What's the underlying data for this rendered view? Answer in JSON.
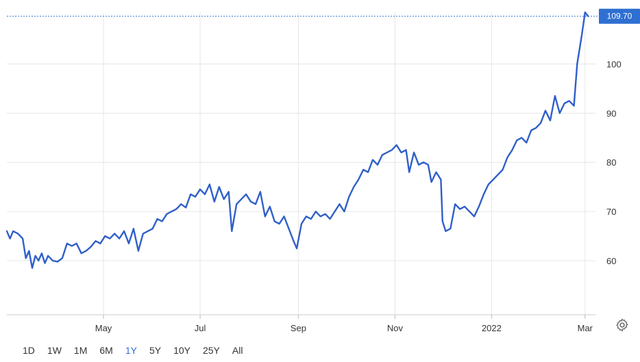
{
  "chart_data": {
    "type": "line",
    "title": "",
    "xlabel": "",
    "ylabel": "",
    "last_value": "109.70",
    "ylim": [
      49,
      110.5
    ],
    "y_ticks": [
      60,
      70,
      80,
      90,
      100
    ],
    "x_ticks": [
      {
        "label": "May",
        "date": "2021-05-01"
      },
      {
        "label": "Jul",
        "date": "2021-07-01"
      },
      {
        "label": "Sep",
        "date": "2021-09-01"
      },
      {
        "label": "Nov",
        "date": "2021-11-01"
      },
      {
        "label": "2022",
        "date": "2022-01-01"
      },
      {
        "label": "Mar",
        "date": "2022-03-01"
      }
    ],
    "xlim": [
      "2021-03-01",
      "2022-03-08"
    ],
    "colors": {
      "line": "#2f5fc8",
      "last_badge": "#2f6fd1",
      "grid": "#e6e6e6"
    },
    "series": [
      {
        "name": "",
        "points": [
          [
            "2021-03-01",
            66.0
          ],
          [
            "2021-03-03",
            64.5
          ],
          [
            "2021-03-05",
            66.0
          ],
          [
            "2021-03-08",
            65.5
          ],
          [
            "2021-03-11",
            64.5
          ],
          [
            "2021-03-13",
            60.5
          ],
          [
            "2021-03-15",
            62.0
          ],
          [
            "2021-03-17",
            58.5
          ],
          [
            "2021-03-19",
            61.0
          ],
          [
            "2021-03-21",
            60.0
          ],
          [
            "2021-03-23",
            61.5
          ],
          [
            "2021-03-25",
            59.5
          ],
          [
            "2021-03-27",
            61.0
          ],
          [
            "2021-03-30",
            60.0
          ],
          [
            "2021-04-02",
            59.8
          ],
          [
            "2021-04-05",
            60.5
          ],
          [
            "2021-04-08",
            63.5
          ],
          [
            "2021-04-11",
            63.0
          ],
          [
            "2021-04-14",
            63.5
          ],
          [
            "2021-04-17",
            61.5
          ],
          [
            "2021-04-20",
            62.0
          ],
          [
            "2021-04-23",
            62.8
          ],
          [
            "2021-04-26",
            64.0
          ],
          [
            "2021-04-29",
            63.5
          ],
          [
            "2021-05-02",
            65.0
          ],
          [
            "2021-05-05",
            64.5
          ],
          [
            "2021-05-08",
            65.5
          ],
          [
            "2021-05-11",
            64.5
          ],
          [
            "2021-05-14",
            66.0
          ],
          [
            "2021-05-17",
            63.5
          ],
          [
            "2021-05-20",
            66.5
          ],
          [
            "2021-05-23",
            62.0
          ],
          [
            "2021-05-26",
            65.5
          ],
          [
            "2021-05-29",
            66.0
          ],
          [
            "2021-06-01",
            66.5
          ],
          [
            "2021-06-04",
            68.5
          ],
          [
            "2021-06-07",
            68.0
          ],
          [
            "2021-06-10",
            69.5
          ],
          [
            "2021-06-13",
            70.0
          ],
          [
            "2021-06-16",
            70.5
          ],
          [
            "2021-06-19",
            71.5
          ],
          [
            "2021-06-22",
            70.8
          ],
          [
            "2021-06-25",
            73.5
          ],
          [
            "2021-06-28",
            73.0
          ],
          [
            "2021-07-01",
            74.5
          ],
          [
            "2021-07-04",
            73.5
          ],
          [
            "2021-07-07",
            75.5
          ],
          [
            "2021-07-10",
            72.0
          ],
          [
            "2021-07-13",
            75.0
          ],
          [
            "2021-07-16",
            72.5
          ],
          [
            "2021-07-19",
            74.0
          ],
          [
            "2021-07-21",
            66.0
          ],
          [
            "2021-07-24",
            71.5
          ],
          [
            "2021-07-27",
            72.5
          ],
          [
            "2021-07-30",
            73.5
          ],
          [
            "2021-08-02",
            72.0
          ],
          [
            "2021-08-05",
            71.5
          ],
          [
            "2021-08-08",
            74.0
          ],
          [
            "2021-08-11",
            69.0
          ],
          [
            "2021-08-14",
            71.0
          ],
          [
            "2021-08-17",
            68.0
          ],
          [
            "2021-08-20",
            67.5
          ],
          [
            "2021-08-23",
            69.0
          ],
          [
            "2021-08-26",
            66.5
          ],
          [
            "2021-08-29",
            64.0
          ],
          [
            "2021-08-31",
            62.5
          ],
          [
            "2021-09-03",
            67.5
          ],
          [
            "2021-09-06",
            69.0
          ],
          [
            "2021-09-09",
            68.5
          ],
          [
            "2021-09-12",
            70.0
          ],
          [
            "2021-09-15",
            69.0
          ],
          [
            "2021-09-18",
            69.5
          ],
          [
            "2021-09-21",
            68.5
          ],
          [
            "2021-09-24",
            70.0
          ],
          [
            "2021-09-27",
            71.5
          ],
          [
            "2021-09-30",
            70.0
          ],
          [
            "2021-10-03",
            73.0
          ],
          [
            "2021-10-06",
            75.0
          ],
          [
            "2021-10-09",
            76.5
          ],
          [
            "2021-10-12",
            78.5
          ],
          [
            "2021-10-15",
            78.0
          ],
          [
            "2021-10-18",
            80.5
          ],
          [
            "2021-10-21",
            79.5
          ],
          [
            "2021-10-24",
            81.5
          ],
          [
            "2021-10-27",
            82.0
          ],
          [
            "2021-10-30",
            82.5
          ],
          [
            "2021-11-02",
            83.5
          ],
          [
            "2021-11-05",
            82.0
          ],
          [
            "2021-11-08",
            82.5
          ],
          [
            "2021-11-10",
            78.0
          ],
          [
            "2021-11-13",
            82.0
          ],
          [
            "2021-11-16",
            79.5
          ],
          [
            "2021-11-19",
            80.0
          ],
          [
            "2021-11-22",
            79.5
          ],
          [
            "2021-11-24",
            76.0
          ],
          [
            "2021-11-27",
            78.0
          ],
          [
            "2021-11-30",
            76.5
          ],
          [
            "2021-12-01",
            68.0
          ],
          [
            "2021-12-03",
            66.0
          ],
          [
            "2021-12-06",
            66.5
          ],
          [
            "2021-12-09",
            71.5
          ],
          [
            "2021-12-12",
            70.5
          ],
          [
            "2021-12-15",
            71.0
          ],
          [
            "2021-12-18",
            70.0
          ],
          [
            "2021-12-21",
            69.0
          ],
          [
            "2021-12-24",
            71.0
          ],
          [
            "2021-12-27",
            73.5
          ],
          [
            "2021-12-30",
            75.5
          ],
          [
            "2022-01-02",
            76.5
          ],
          [
            "2022-01-05",
            77.5
          ],
          [
            "2022-01-08",
            78.5
          ],
          [
            "2022-01-11",
            81.0
          ],
          [
            "2022-01-14",
            82.5
          ],
          [
            "2022-01-17",
            84.5
          ],
          [
            "2022-01-20",
            85.0
          ],
          [
            "2022-01-23",
            84.0
          ],
          [
            "2022-01-26",
            86.5
          ],
          [
            "2022-01-29",
            87.0
          ],
          [
            "2022-02-01",
            88.0
          ],
          [
            "2022-02-04",
            90.5
          ],
          [
            "2022-02-07",
            88.5
          ],
          [
            "2022-02-10",
            93.5
          ],
          [
            "2022-02-13",
            90.0
          ],
          [
            "2022-02-16",
            92.0
          ],
          [
            "2022-02-19",
            92.5
          ],
          [
            "2022-02-22",
            91.5
          ],
          [
            "2022-02-24",
            100.0
          ],
          [
            "2022-02-27",
            106.0
          ],
          [
            "2022-03-01",
            110.5
          ],
          [
            "2022-03-03",
            109.7
          ]
        ]
      }
    ]
  },
  "range_selector": {
    "items": [
      "1D",
      "1W",
      "1M",
      "6M",
      "1Y",
      "5Y",
      "10Y",
      "25Y",
      "All"
    ],
    "active": "1Y"
  },
  "icons": {
    "settings": "gear-icon"
  }
}
